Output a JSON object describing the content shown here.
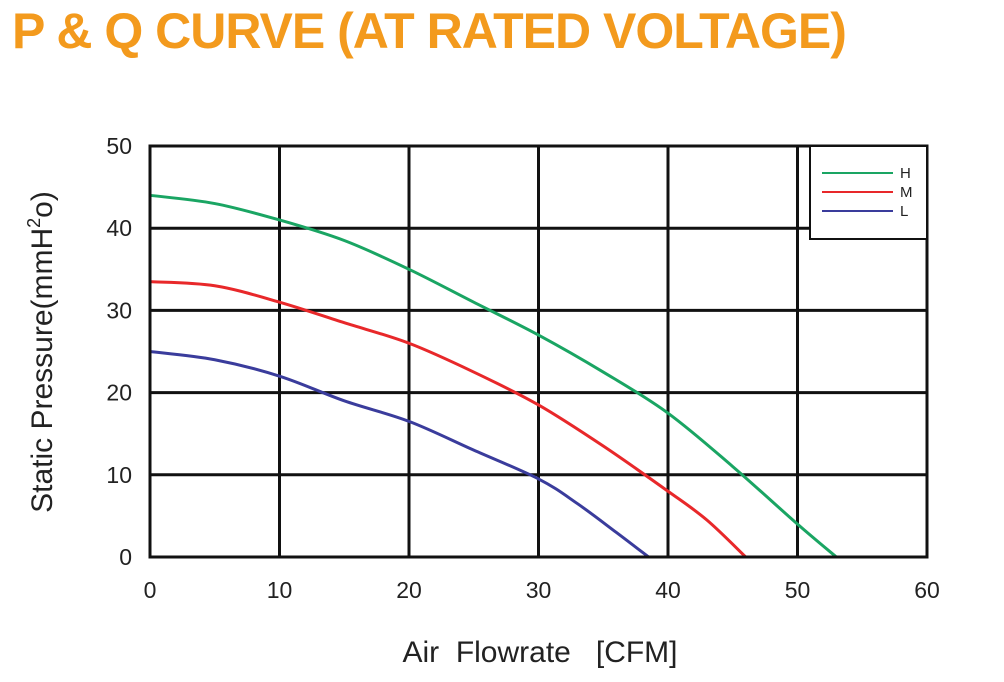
{
  "chart_data": {
    "type": "line",
    "title": "P & Q CURVE (AT RATED VOLTAGE)",
    "xlabel": "Air  Flowrate   [CFM]",
    "ylabel_main": "Static Pressure(mmH",
    "ylabel_sup": "2",
    "ylabel_end": "o)",
    "xlim": [
      0,
      60
    ],
    "ylim": [
      0,
      50
    ],
    "xticks": [
      "0",
      "10",
      "20",
      "30",
      "40",
      "50",
      "60"
    ],
    "yticks": [
      "0",
      "10",
      "20",
      "30",
      "40",
      "50"
    ],
    "grid": true,
    "legend_position": "top-right",
    "series": [
      {
        "name": "H",
        "color": "#1aa563",
        "x": [
          0,
          5,
          10,
          15,
          20,
          25,
          30,
          35,
          40,
          45,
          50,
          53
        ],
        "y": [
          44,
          43,
          41,
          38.5,
          35,
          31,
          27,
          22.5,
          17.5,
          11,
          4,
          0
        ]
      },
      {
        "name": "M",
        "color": "#e8282a",
        "x": [
          0,
          5,
          10,
          15,
          20,
          25,
          30,
          35,
          40,
          43,
          46
        ],
        "y": [
          33.5,
          33,
          31,
          28.5,
          26,
          22.5,
          18.5,
          13.5,
          8,
          4.5,
          0
        ]
      },
      {
        "name": "L",
        "color": "#3a3c9c",
        "x": [
          0,
          5,
          10,
          15,
          20,
          25,
          30,
          33,
          36,
          38.5
        ],
        "y": [
          25,
          24,
          22,
          19,
          16.5,
          13,
          9.5,
          6.5,
          3,
          0
        ]
      }
    ]
  }
}
